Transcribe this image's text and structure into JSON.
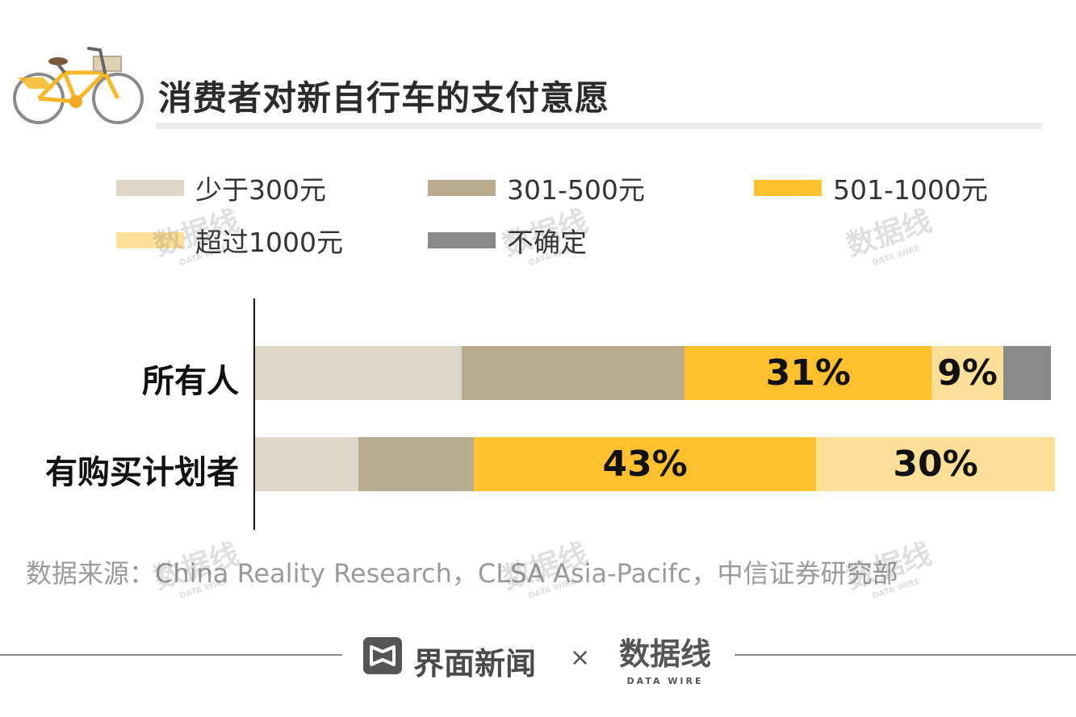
{
  "title": "消费者对新自行车的支付意愿",
  "legend": [
    {
      "label": "少于300元",
      "color": "#ddd6c9"
    },
    {
      "label": "301-500元",
      "color": "#b9ab8d"
    },
    {
      "label": "501-1000元",
      "color": "#ffc02e"
    },
    {
      "label": "超过1000元",
      "color": "#fddf98"
    },
    {
      "label": "不确定",
      "color": "#898989"
    }
  ],
  "chart_data": {
    "type": "bar",
    "orientation": "horizontal",
    "stacked": true,
    "categories": [
      "所有人",
      "有购买计划者"
    ],
    "series": [
      {
        "name": "少于300元",
        "values": [
          26,
          13
        ]
      },
      {
        "name": "301-500元",
        "values": [
          28,
          14.5
        ]
      },
      {
        "name": "501-1000元",
        "values": [
          31,
          43
        ]
      },
      {
        "name": "超过1000元",
        "values": [
          9,
          30
        ]
      },
      {
        "name": "不确定",
        "values": [
          6,
          0
        ]
      }
    ],
    "data_labels": [
      {
        "row": 0,
        "series": 2,
        "text": "31%"
      },
      {
        "row": 0,
        "series": 3,
        "text": "9%"
      },
      {
        "row": 1,
        "series": 2,
        "text": "43%"
      },
      {
        "row": 1,
        "series": 3,
        "text": "30%"
      }
    ],
    "xlim": [
      0,
      100
    ],
    "grid": false,
    "legend_position": "top"
  },
  "source": "数据来源：China Reality Research，CLSA Asia-Pacifc，中信证券研究部",
  "footer": {
    "brand_left": "界面新闻",
    "separator": "×",
    "brand_right": "数据线",
    "brand_right_sub": "DATA WIRE"
  },
  "icons": [
    "bicycle-icon",
    "jiemian-logo-icon",
    "datawire-logo-icon"
  ]
}
